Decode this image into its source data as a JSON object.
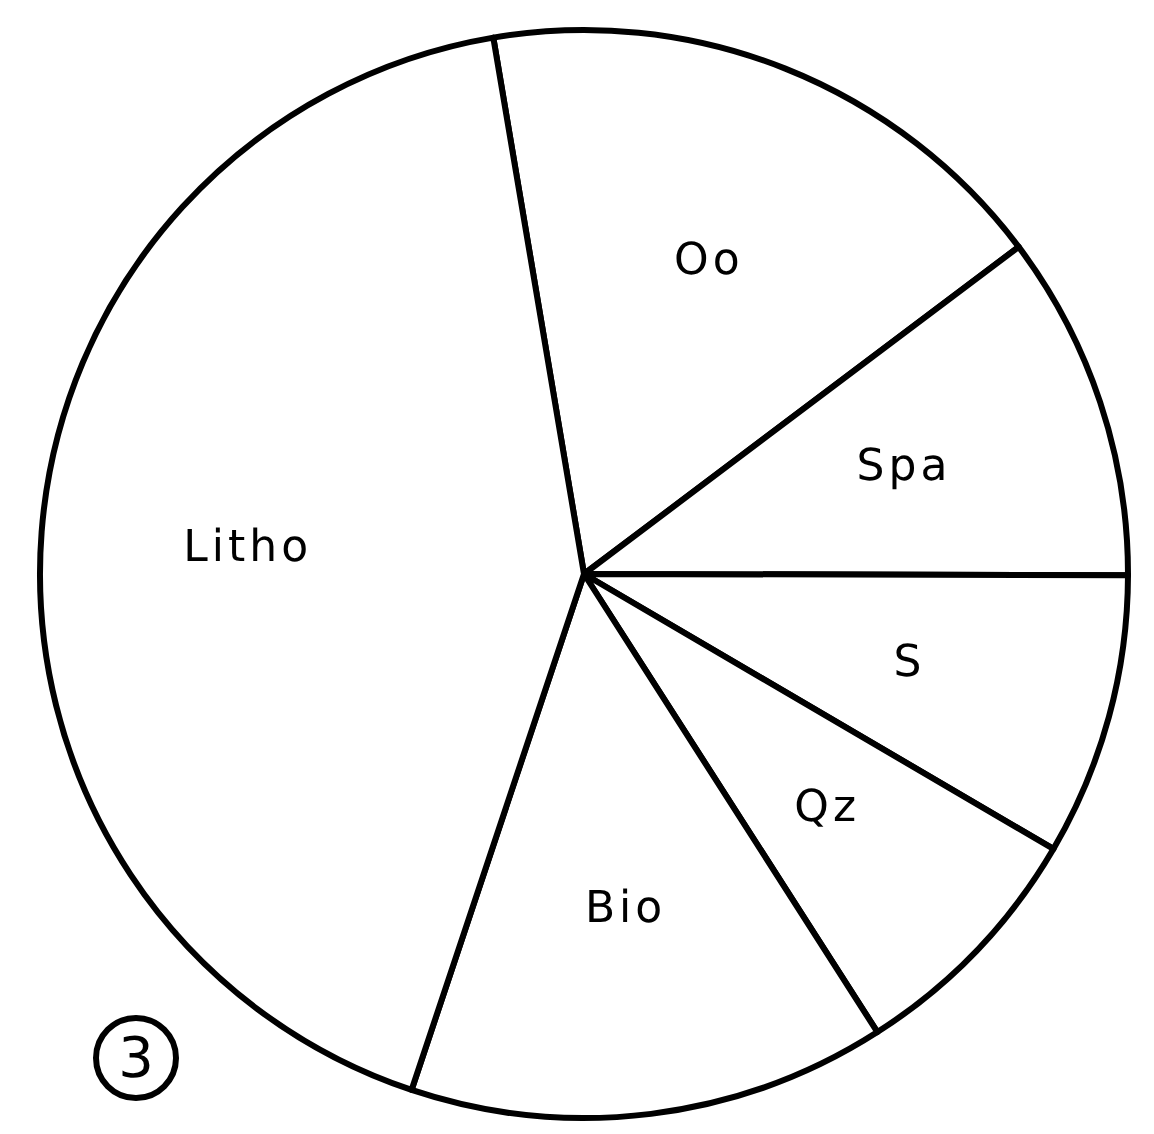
{
  "chart_data": {
    "type": "pie",
    "categories": [
      "Oo",
      "Spa",
      "S",
      "Qz",
      "Bio",
      "Litho"
    ],
    "values": [
      17.4,
      10.3,
      8.4,
      7.5,
      14.2,
      42.2
    ],
    "colors": [
      "#ffffff",
      "#ffffff",
      "#ffffff",
      "#ffffff",
      "#ffffff",
      "#ffffff"
    ],
    "annotations": [
      "3"
    ]
  }
}
